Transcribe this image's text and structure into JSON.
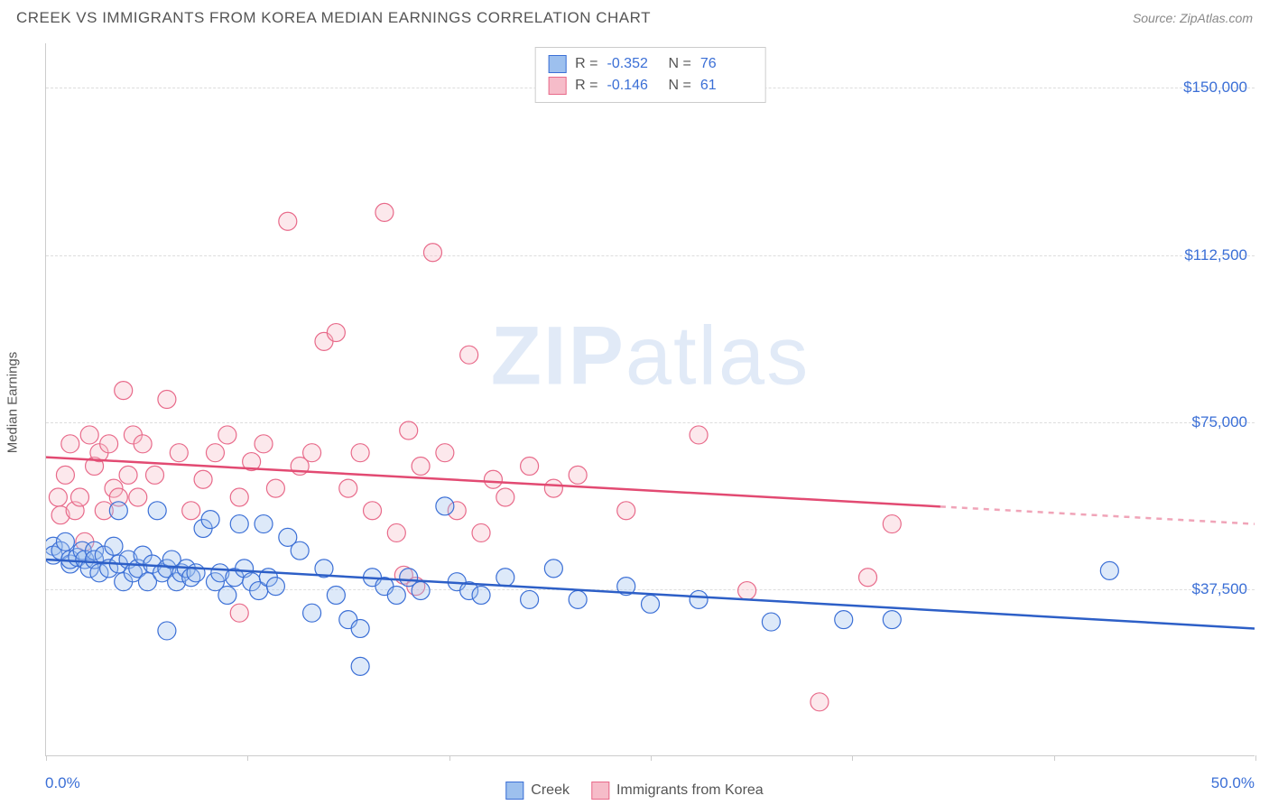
{
  "header": {
    "title": "CREEK VS IMMIGRANTS FROM KOREA MEDIAN EARNINGS CORRELATION CHART",
    "source": "Source: ZipAtlas.com"
  },
  "watermark": {
    "text1": "ZIP",
    "text2": "atlas"
  },
  "chart": {
    "type": "scatter",
    "background_color": "#ffffff",
    "grid_color": "#dddddd",
    "axis_color": "#cccccc",
    "tick_label_color": "#3b6fd6",
    "axis_title_color": "#555555",
    "y_axis_title": "Median Earnings",
    "x_domain": [
      0,
      50
    ],
    "y_domain": [
      0,
      160000
    ],
    "x_ticks": [
      0,
      8.33,
      16.67,
      25,
      33.33,
      41.67,
      50
    ],
    "x_tick_labels": {
      "start": "0.0%",
      "end": "50.0%"
    },
    "y_gridlines": [
      37500,
      75000,
      112500,
      150000
    ],
    "y_tick_labels": [
      "$37,500",
      "$75,000",
      "$112,500",
      "$150,000"
    ],
    "marker_radius": 10,
    "marker_stroke_width": 1.2,
    "marker_fill_opacity": 0.35,
    "trend_line_width": 2.5,
    "series": [
      {
        "name": "Creek",
        "color_fill": "#9dc0ee",
        "color_stroke": "#3b6fd6",
        "trend_color": "#2d5fc7",
        "R": "-0.352",
        "N": "76",
        "trend": {
          "x1": 0,
          "y1": 44000,
          "x2": 50,
          "y2": 28500
        },
        "trend_dash_from_x": 50,
        "points": [
          [
            0.3,
            47000
          ],
          [
            0.3,
            45000
          ],
          [
            0.6,
            46000
          ],
          [
            0.8,
            48000
          ],
          [
            1.0,
            43000
          ],
          [
            1.0,
            44000
          ],
          [
            1.3,
            44500
          ],
          [
            1.5,
            46000
          ],
          [
            1.6,
            44000
          ],
          [
            1.8,
            42000
          ],
          [
            2.0,
            46000
          ],
          [
            2.0,
            44000
          ],
          [
            2.2,
            41000
          ],
          [
            2.4,
            45000
          ],
          [
            2.6,
            42000
          ],
          [
            2.8,
            47000
          ],
          [
            3.0,
            43000
          ],
          [
            3.0,
            55000
          ],
          [
            3.2,
            39000
          ],
          [
            3.4,
            44000
          ],
          [
            3.6,
            41000
          ],
          [
            3.8,
            42000
          ],
          [
            4.0,
            45000
          ],
          [
            4.2,
            39000
          ],
          [
            4.4,
            43000
          ],
          [
            4.6,
            55000
          ],
          [
            4.8,
            41000
          ],
          [
            5.0,
            42000
          ],
          [
            5.0,
            28000
          ],
          [
            5.2,
            44000
          ],
          [
            5.4,
            39000
          ],
          [
            5.6,
            41000
          ],
          [
            5.8,
            42000
          ],
          [
            6.0,
            40000
          ],
          [
            6.2,
            41000
          ],
          [
            6.5,
            51000
          ],
          [
            6.8,
            53000
          ],
          [
            7.0,
            39000
          ],
          [
            7.2,
            41000
          ],
          [
            7.5,
            36000
          ],
          [
            7.8,
            40000
          ],
          [
            8.0,
            52000
          ],
          [
            8.2,
            42000
          ],
          [
            8.5,
            39000
          ],
          [
            8.8,
            37000
          ],
          [
            9.0,
            52000
          ],
          [
            9.2,
            40000
          ],
          [
            9.5,
            38000
          ],
          [
            10.0,
            49000
          ],
          [
            10.5,
            46000
          ],
          [
            11.0,
            32000
          ],
          [
            11.5,
            42000
          ],
          [
            12.0,
            36000
          ],
          [
            12.5,
            30500
          ],
          [
            13.0,
            28500
          ],
          [
            13.0,
            20000
          ],
          [
            13.5,
            40000
          ],
          [
            14.0,
            38000
          ],
          [
            14.5,
            36000
          ],
          [
            15.0,
            40000
          ],
          [
            15.5,
            37000
          ],
          [
            16.5,
            56000
          ],
          [
            17.0,
            39000
          ],
          [
            17.5,
            37000
          ],
          [
            18.0,
            36000
          ],
          [
            19.0,
            40000
          ],
          [
            20.0,
            35000
          ],
          [
            21.0,
            42000
          ],
          [
            22.0,
            35000
          ],
          [
            24.0,
            38000
          ],
          [
            25.0,
            34000
          ],
          [
            27.0,
            35000
          ],
          [
            30.0,
            30000
          ],
          [
            33.0,
            30500
          ],
          [
            35.0,
            30500
          ],
          [
            44.0,
            41500
          ]
        ]
      },
      {
        "name": "Immigrants from Korea",
        "color_fill": "#f6bcc9",
        "color_stroke": "#e86a8a",
        "trend_color": "#e24a72",
        "R": "-0.146",
        "N": "61",
        "trend": {
          "x1": 0,
          "y1": 67000,
          "x2": 50,
          "y2": 52000
        },
        "trend_dash_from_x": 37,
        "points": [
          [
            0.5,
            58000
          ],
          [
            0.6,
            54000
          ],
          [
            0.8,
            63000
          ],
          [
            1.0,
            70000
          ],
          [
            1.2,
            55000
          ],
          [
            1.4,
            58000
          ],
          [
            1.6,
            48000
          ],
          [
            1.8,
            72000
          ],
          [
            2.0,
            65000
          ],
          [
            2.2,
            68000
          ],
          [
            2.4,
            55000
          ],
          [
            2.6,
            70000
          ],
          [
            2.8,
            60000
          ],
          [
            3.0,
            58000
          ],
          [
            3.2,
            82000
          ],
          [
            3.4,
            63000
          ],
          [
            3.6,
            72000
          ],
          [
            3.8,
            58000
          ],
          [
            4.0,
            70000
          ],
          [
            4.5,
            63000
          ],
          [
            5.0,
            80000
          ],
          [
            5.5,
            68000
          ],
          [
            6.0,
            55000
          ],
          [
            6.5,
            62000
          ],
          [
            7.0,
            68000
          ],
          [
            7.5,
            72000
          ],
          [
            8.0,
            58000
          ],
          [
            8.5,
            66000
          ],
          [
            9.0,
            70000
          ],
          [
            9.5,
            60000
          ],
          [
            10.0,
            120000
          ],
          [
            10.5,
            65000
          ],
          [
            11.0,
            68000
          ],
          [
            11.5,
            93000
          ],
          [
            12.0,
            95000
          ],
          [
            12.5,
            60000
          ],
          [
            13.0,
            68000
          ],
          [
            13.5,
            55000
          ],
          [
            14.0,
            122000
          ],
          [
            14.5,
            50000
          ],
          [
            14.8,
            40500
          ],
          [
            15.0,
            73000
          ],
          [
            15.3,
            38000
          ],
          [
            15.5,
            65000
          ],
          [
            16.0,
            113000
          ],
          [
            16.5,
            68000
          ],
          [
            17.0,
            55000
          ],
          [
            17.5,
            90000
          ],
          [
            18.0,
            50000
          ],
          [
            18.5,
            62000
          ],
          [
            19.0,
            58000
          ],
          [
            20.0,
            65000
          ],
          [
            21.0,
            60000
          ],
          [
            22.0,
            63000
          ],
          [
            24.0,
            55000
          ],
          [
            27.0,
            72000
          ],
          [
            29.0,
            37000
          ],
          [
            32.0,
            12000
          ],
          [
            34.0,
            40000
          ],
          [
            35.0,
            52000
          ],
          [
            8.0,
            32000
          ]
        ]
      }
    ]
  },
  "legend_bottom": {
    "items": [
      "Creek",
      "Immigrants from Korea"
    ]
  }
}
